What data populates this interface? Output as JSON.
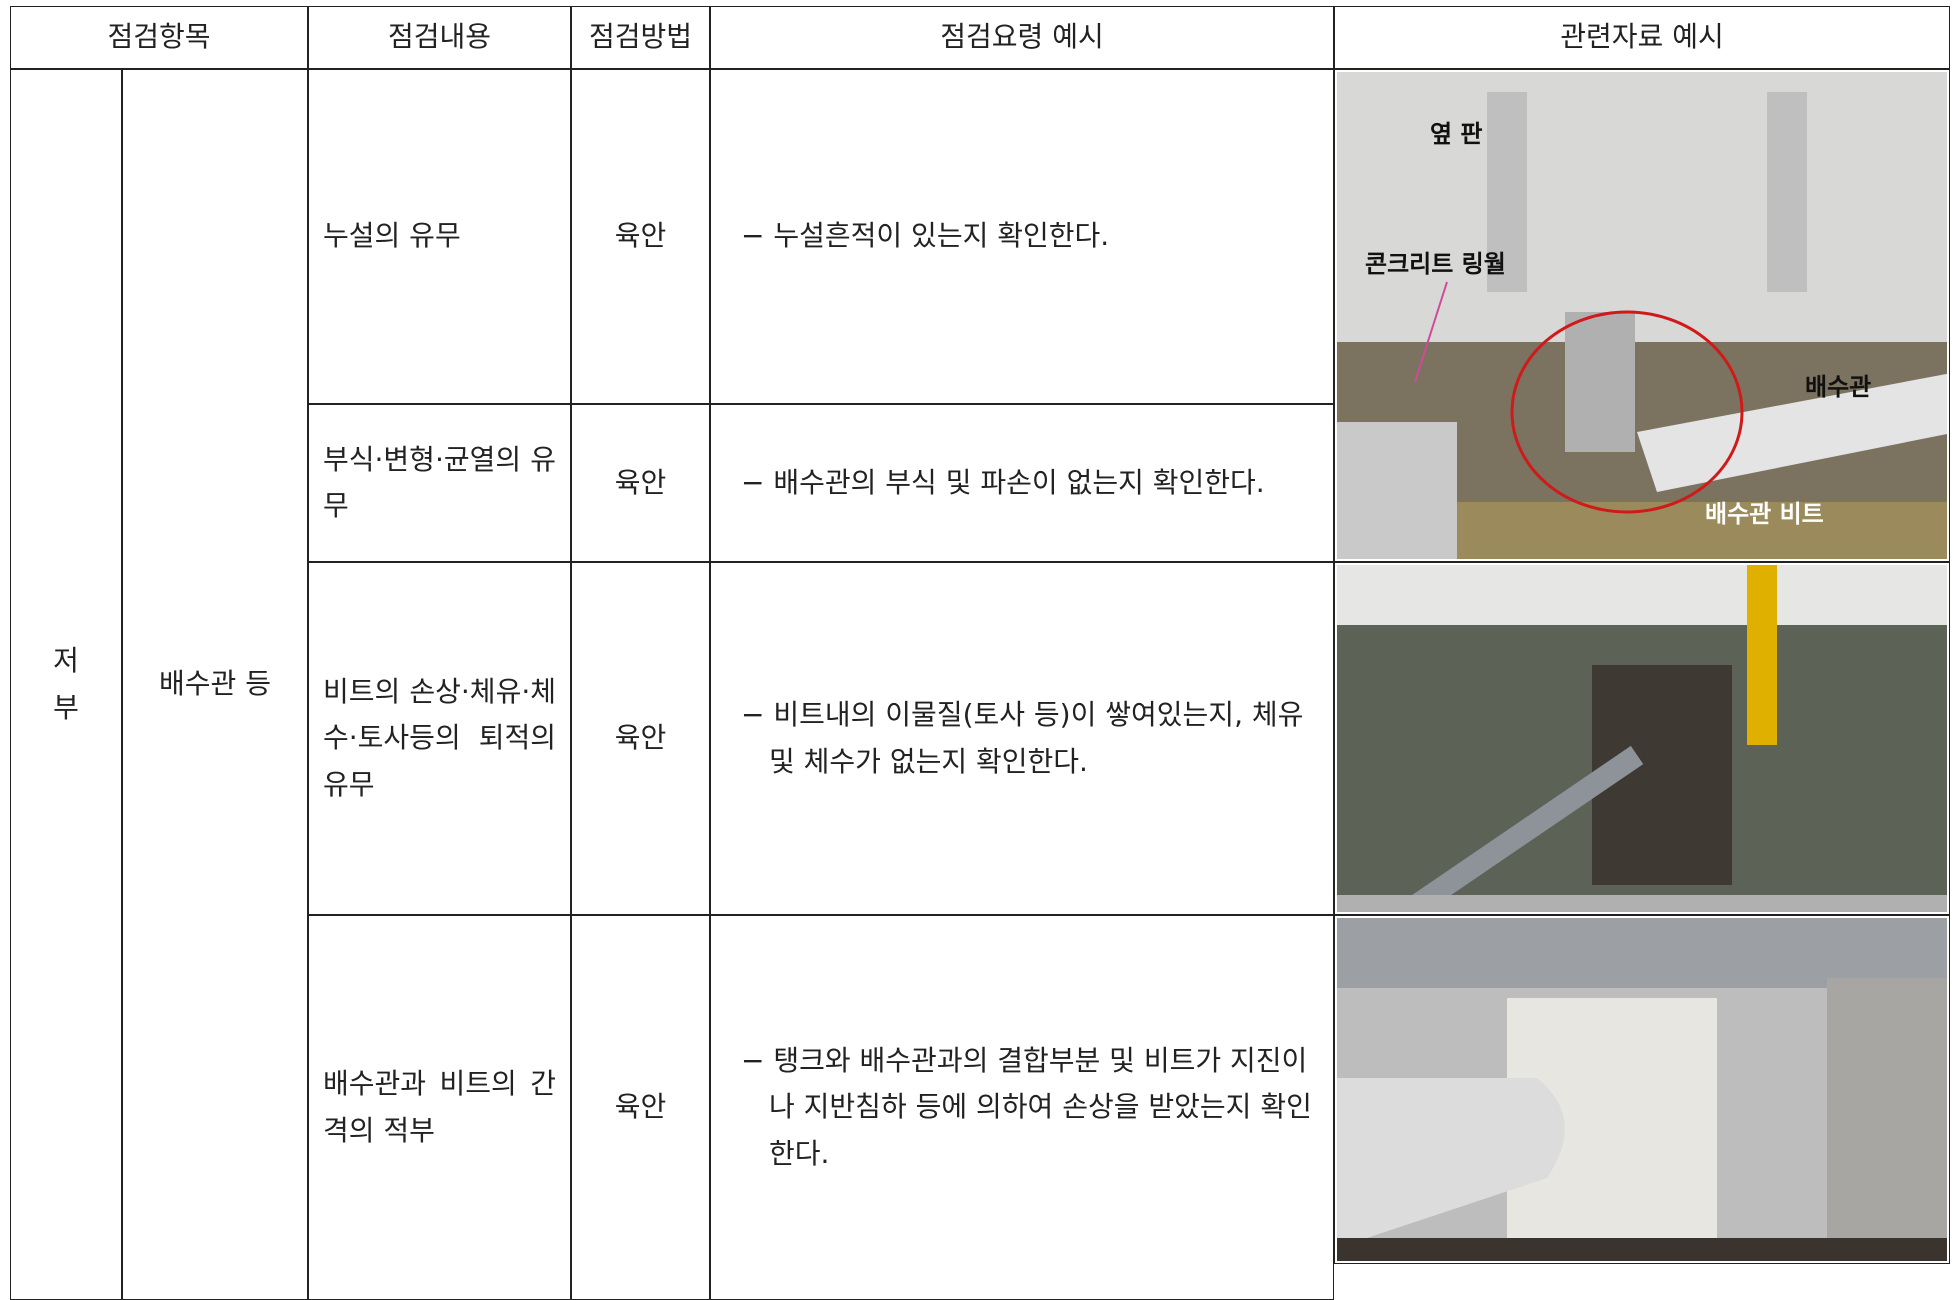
{
  "table": {
    "header": [
      "점검항목",
      "점검내용",
      "점검방법",
      "점검요령 예시",
      "관련자료 예시"
    ],
    "section": "저 부",
    "item": "배수관 등",
    "rows": [
      {
        "content": "누설의 유무",
        "method": "육안",
        "guide": "− 누설흔적이 있는지 확인한다."
      },
      {
        "content": "부식·변형·균열의 유무",
        "method": "육안",
        "guide": "− 배수관의 부식 및 파손이 없는지 확인한다."
      },
      {
        "content": "비트의 손상·체유·체수·토사등의 퇴적의 유무",
        "method": "육안",
        "guide": "− 비트내의 이물질(토사 등)이 쌓여있는지, 체유 및 체수가 없는지 확인한다."
      },
      {
        "content": "배수관과 비트의 간격의 적부",
        "method": "육안",
        "guide": "− 탱크와 배수관과의 결합부분 및 비트가 지진이나 지반침하 등에 의하여 손상을 받았는지 확인한다."
      }
    ],
    "photo_labels": [
      "옆 판",
      "콘크리트 링월",
      "배수관",
      "배수관 비트"
    ]
  }
}
